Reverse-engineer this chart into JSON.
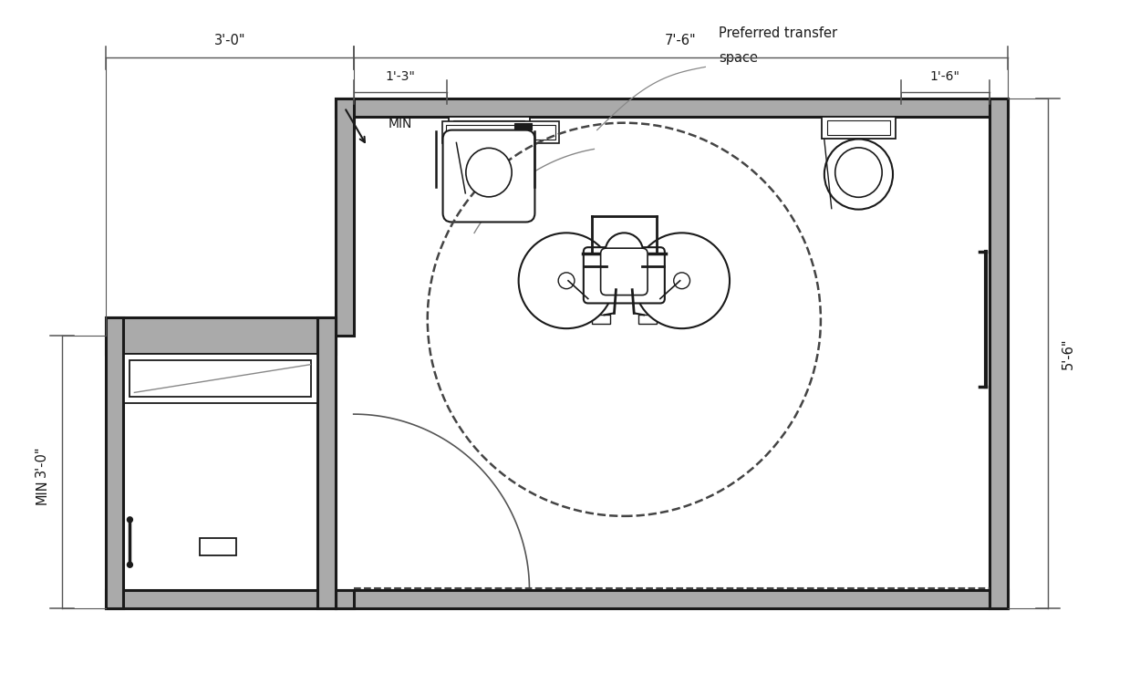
{
  "bg": "#ffffff",
  "wall_gray": "#aaaaaa",
  "dark": "#1a1a1a",
  "mid": "#555555",
  "light": "#888888",
  "labels": {
    "top_left": "3'-0\"",
    "top_right": "7'-6\"",
    "inner_left": "1'-3\"",
    "inner_left2": "MIN",
    "inner_right": "1'-6\"",
    "side_left": "3'-0\"",
    "side_left2": "MIN",
    "side_right": "5'-6\"",
    "transfer_line1": "Preferred transfer",
    "transfer_line2": "space"
  }
}
